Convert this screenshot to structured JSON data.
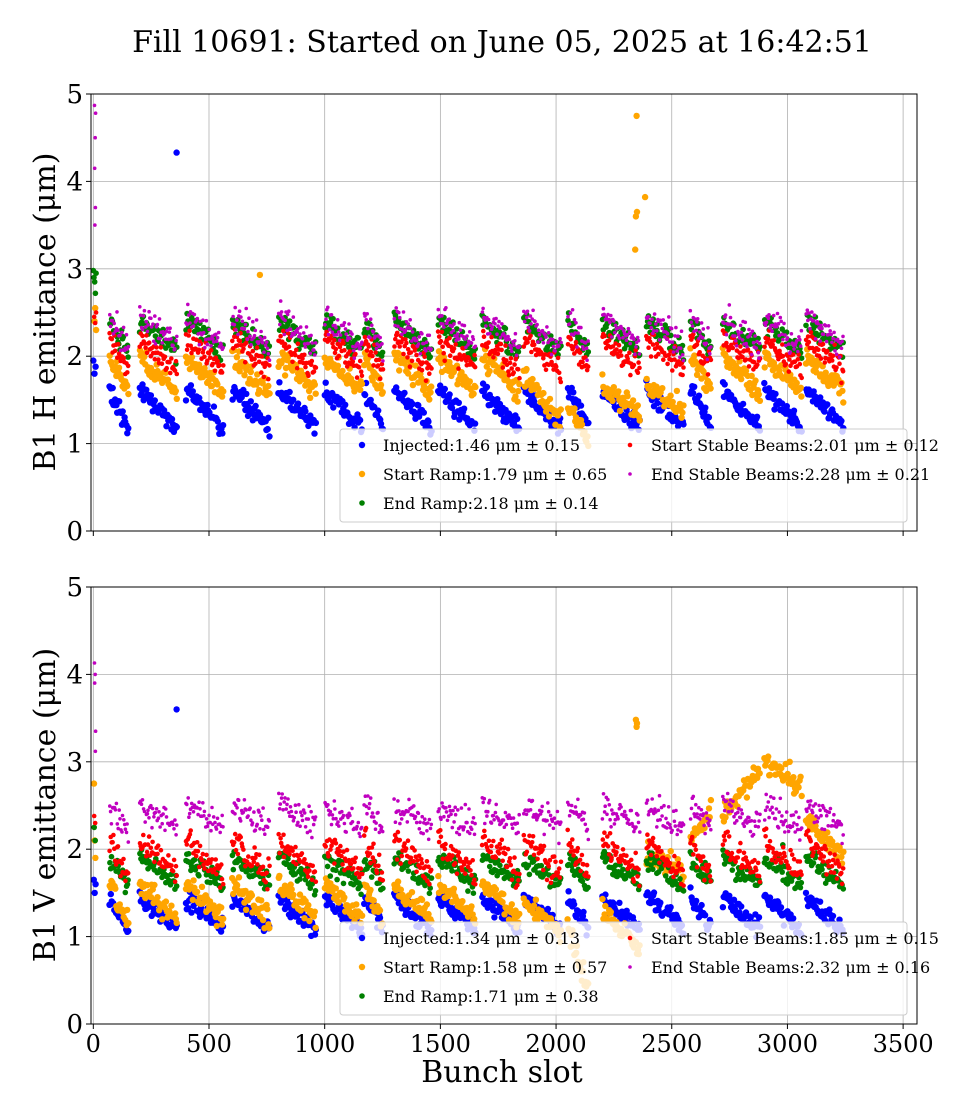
{
  "figure": {
    "title": "Fill 10691: Started on June 05, 2025 at 16:42:51",
    "xlabel": "Bunch slot"
  },
  "chart_data": [
    {
      "type": "scatter",
      "panel": "top",
      "ylabel": "B1 H emittance (μm)",
      "xlim": [
        -10,
        3560
      ],
      "ylim": [
        0,
        5
      ],
      "xticks": [
        0,
        500,
        1000,
        1500,
        2000,
        2500,
        3000,
        3500
      ],
      "yticks": [
        0,
        1,
        2,
        3,
        4,
        5
      ],
      "xtick_labels_shown": false,
      "grid": true,
      "legend_position": "lower-right",
      "legend_columns": 2,
      "bunch_trains": [
        {
          "start": 70,
          "end": 150
        },
        {
          "start": 200,
          "end": 360
        },
        {
          "start": 400,
          "end": 560
        },
        {
          "start": 600,
          "end": 760
        },
        {
          "start": 800,
          "end": 960
        },
        {
          "start": 1000,
          "end": 1160
        },
        {
          "start": 1170,
          "end": 1250
        },
        {
          "start": 1300,
          "end": 1460
        },
        {
          "start": 1490,
          "end": 1650
        },
        {
          "start": 1680,
          "end": 1840
        },
        {
          "start": 1860,
          "end": 2020
        },
        {
          "start": 2050,
          "end": 2140
        },
        {
          "start": 2200,
          "end": 2360
        },
        {
          "start": 2390,
          "end": 2550
        },
        {
          "start": 2580,
          "end": 2670
        },
        {
          "start": 2720,
          "end": 2880
        },
        {
          "start": 2900,
          "end": 3060
        },
        {
          "start": 3080,
          "end": 3240
        }
      ],
      "series": [
        {
          "name": "Injected",
          "legend_label": "Injected:1.46 μm ± 0.15",
          "color": "#0000ff",
          "marker_size": "large",
          "train_profile": [
            1.62,
            1.18
          ],
          "noise": 0.05,
          "extra_points": [
            {
              "x": 0,
              "y": 1.95
            },
            {
              "x": 5,
              "y": 1.8
            },
            {
              "x": 10,
              "y": 1.88
            },
            {
              "x": 360,
              "y": 4.33
            }
          ]
        },
        {
          "name": "Start Ramp",
          "legend_label": "Start Ramp:1.79 μm ± 0.65",
          "color": "#ffa500",
          "marker_size": "large",
          "train_profile": [
            2.0,
            1.6
          ],
          "noise": 0.06,
          "train_overrides": [
            {
              "train_start": 1860,
              "profile": [
                1.8,
                1.25
              ]
            },
            {
              "train_start": 2050,
              "profile": [
                1.45,
                1.0
              ]
            },
            {
              "train_start": 2200,
              "profile": [
                1.65,
                1.35
              ]
            },
            {
              "train_start": 2390,
              "profile": [
                1.65,
                1.4
              ]
            }
          ],
          "extra_points": [
            {
              "x": 5,
              "y": 2.4
            },
            {
              "x": 8,
              "y": 2.55
            },
            {
              "x": 12,
              "y": 2.3
            },
            {
              "x": 720,
              "y": 2.93
            },
            {
              "x": 2348,
              "y": 4.75
            },
            {
              "x": 2345,
              "y": 3.6
            },
            {
              "x": 2350,
              "y": 3.65
            },
            {
              "x": 2342,
              "y": 3.22
            },
            {
              "x": 2385,
              "y": 3.82
            }
          ]
        },
        {
          "name": "End Ramp",
          "legend_label": "End Ramp:2.18 μm ± 0.14",
          "color": "#008000",
          "marker_size": "medium",
          "train_profile": [
            2.4,
            2.05
          ],
          "noise": 0.06,
          "extra_points": [
            {
              "x": 0,
              "y": 2.98
            },
            {
              "x": 3,
              "y": 2.9
            },
            {
              "x": 6,
              "y": 2.85
            },
            {
              "x": 9,
              "y": 2.72
            },
            {
              "x": 12,
              "y": 2.95
            }
          ]
        },
        {
          "name": "Start Stable Beams",
          "legend_label": "Start Stable Beams:2.01 μm ± 0.12",
          "color": "#ff0000",
          "marker_size": "small",
          "train_profile": [
            2.2,
            1.85
          ],
          "noise": 0.07,
          "extra_points": [
            {
              "x": 4,
              "y": 2.45
            },
            {
              "x": 8,
              "y": 2.38
            },
            {
              "x": 12,
              "y": 2.5
            }
          ]
        },
        {
          "name": "End Stable Beams",
          "legend_label": "End Stable Beams:2.28 μm ± 0.21",
          "color": "#c000c0",
          "marker_size": "tiny",
          "train_profile": [
            2.45,
            2.1
          ],
          "noise": 0.08,
          "extra_points": [
            {
              "x": 5,
              "y": 4.87
            },
            {
              "x": 10,
              "y": 4.78
            },
            {
              "x": 8,
              "y": 4.5
            },
            {
              "x": 6,
              "y": 4.15
            },
            {
              "x": 9,
              "y": 3.7
            },
            {
              "x": 7,
              "y": 3.5
            },
            {
              "x": 810,
              "y": 2.63
            }
          ]
        }
      ]
    },
    {
      "type": "scatter",
      "panel": "bottom",
      "ylabel": "B1 V emittance (μm)",
      "xlabel": "Bunch slot",
      "xlim": [
        -10,
        3560
      ],
      "ylim": [
        0,
        5
      ],
      "xticks": [
        0,
        500,
        1000,
        1500,
        2000,
        2500,
        3000,
        3500
      ],
      "yticks": [
        0,
        1,
        2,
        3,
        4,
        5
      ],
      "xtick_labels_shown": true,
      "grid": true,
      "legend_position": "lower-right",
      "legend_columns": 2,
      "bunch_trains": [
        {
          "start": 70,
          "end": 150
        },
        {
          "start": 200,
          "end": 360
        },
        {
          "start": 400,
          "end": 560
        },
        {
          "start": 600,
          "end": 760
        },
        {
          "start": 800,
          "end": 960
        },
        {
          "start": 1000,
          "end": 1160
        },
        {
          "start": 1170,
          "end": 1250
        },
        {
          "start": 1300,
          "end": 1460
        },
        {
          "start": 1490,
          "end": 1650
        },
        {
          "start": 1680,
          "end": 1840
        },
        {
          "start": 1860,
          "end": 2020
        },
        {
          "start": 2050,
          "end": 2140
        },
        {
          "start": 2200,
          "end": 2360
        },
        {
          "start": 2390,
          "end": 2550
        },
        {
          "start": 2580,
          "end": 2670
        },
        {
          "start": 2720,
          "end": 2880
        },
        {
          "start": 2900,
          "end": 3060
        },
        {
          "start": 3080,
          "end": 3240
        }
      ],
      "series": [
        {
          "name": "Injected",
          "legend_label": "Injected:1.34 μm ± 0.13",
          "color": "#0000ff",
          "marker_size": "large",
          "train_profile": [
            1.45,
            1.08
          ],
          "noise": 0.05,
          "extra_points": [
            {
              "x": 2,
              "y": 1.65
            },
            {
              "x": 6,
              "y": 1.5
            },
            {
              "x": 10,
              "y": 1.6
            },
            {
              "x": 360,
              "y": 3.6
            }
          ]
        },
        {
          "name": "Start Ramp",
          "legend_label": "Start Ramp:1.58 μm ± 0.57",
          "color": "#ffa500",
          "marker_size": "large",
          "train_profile": [
            1.6,
            1.2
          ],
          "noise": 0.06,
          "train_overrides": [
            {
              "train_start": 1860,
              "profile": [
                1.4,
                1.05
              ]
            },
            {
              "train_start": 2050,
              "profile": [
                1.1,
                0.4
              ]
            },
            {
              "train_start": 2200,
              "profile": [
                1.3,
                0.85
              ]
            },
            {
              "train_start": 2390,
              "profile": [
                1.95,
                1.75
              ]
            },
            {
              "train_start": 2580,
              "profile": [
                2.1,
                2.45
              ]
            },
            {
              "train_start": 2720,
              "profile": [
                2.4,
                2.9
              ]
            },
            {
              "train_start": 2900,
              "profile": [
                3.0,
                2.7
              ]
            },
            {
              "train_start": 3080,
              "profile": [
                2.35,
                1.9
              ]
            }
          ],
          "extra_points": [
            {
              "x": 3,
              "y": 2.75
            },
            {
              "x": 6,
              "y": 2.1
            },
            {
              "x": 9,
              "y": 1.9
            },
            {
              "x": 2345,
              "y": 3.48
            },
            {
              "x": 2348,
              "y": 3.4
            },
            {
              "x": 2350,
              "y": 3.44
            },
            {
              "x": 3010,
              "y": 3.0
            }
          ]
        },
        {
          "name": "End Ramp",
          "legend_label": "End Ramp:1.71 μm ± 0.38",
          "color": "#008000",
          "marker_size": "medium",
          "train_profile": [
            1.9,
            1.6
          ],
          "noise": 0.06,
          "extra_points": [
            {
              "x": 4,
              "y": 2.25
            },
            {
              "x": 8,
              "y": 2.1
            },
            {
              "x": 2980,
              "y": 2.05
            }
          ]
        },
        {
          "name": "Start Stable Beams",
          "legend_label": "Start Stable Beams:1.85 μm ± 0.15",
          "color": "#ff0000",
          "marker_size": "small",
          "train_profile": [
            2.1,
            1.7
          ],
          "noise": 0.08,
          "extra_points": [
            {
              "x": 4,
              "y": 2.38
            },
            {
              "x": 8,
              "y": 2.3
            }
          ]
        },
        {
          "name": "End Stable Beams",
          "legend_label": "End Stable Beams:2.32 μm ± 0.16",
          "color": "#c000c0",
          "marker_size": "tiny",
          "train_profile": [
            2.5,
            2.25
          ],
          "noise": 0.08,
          "extra_points": [
            {
              "x": 5,
              "y": 4.13
            },
            {
              "x": 8,
              "y": 4.0
            },
            {
              "x": 6,
              "y": 3.9
            },
            {
              "x": 10,
              "y": 3.35
            },
            {
              "x": 9,
              "y": 3.12
            }
          ]
        }
      ]
    }
  ]
}
